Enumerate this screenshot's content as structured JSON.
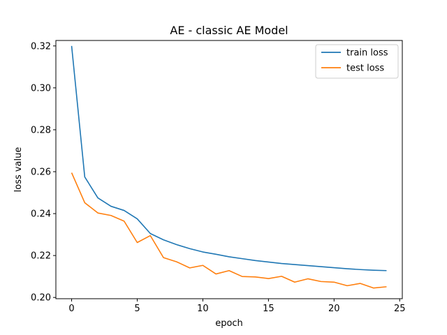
{
  "chart_data": {
    "type": "line",
    "title": "AE  - classic AE Model",
    "xlabel": "epoch",
    "ylabel": "loss value",
    "xlim": [
      -1.2,
      25.2
    ],
    "ylim": [
      0.1994,
      0.3226
    ],
    "xticks": [
      0,
      5,
      10,
      15,
      20,
      25
    ],
    "xtick_labels": [
      "0",
      "5",
      "10",
      "15",
      "20",
      "25"
    ],
    "yticks": [
      0.2,
      0.22,
      0.24,
      0.26,
      0.28,
      0.3,
      0.32
    ],
    "ytick_labels": [
      "0.20",
      "0.22",
      "0.24",
      "0.26",
      "0.28",
      "0.30",
      "0.32"
    ],
    "grid": false,
    "legend_position": "upper right",
    "x": [
      0,
      1,
      2,
      3,
      4,
      5,
      6,
      7,
      8,
      9,
      10,
      11,
      12,
      13,
      14,
      15,
      16,
      17,
      18,
      19,
      20,
      21,
      22,
      23,
      24
    ],
    "series": [
      {
        "name": "train loss",
        "color": "#1f77b4",
        "values": [
          0.32,
          0.2575,
          0.2475,
          0.2435,
          0.2415,
          0.2375,
          0.2305,
          0.2275,
          0.2252,
          0.2233,
          0.2217,
          0.2206,
          0.2194,
          0.2185,
          0.2176,
          0.2169,
          0.2162,
          0.2157,
          0.2152,
          0.2147,
          0.2142,
          0.2137,
          0.2133,
          0.213,
          0.2128
        ]
      },
      {
        "name": "test loss",
        "color": "#ff7f0e",
        "values": [
          0.2595,
          0.2452,
          0.2403,
          0.2391,
          0.2364,
          0.2262,
          0.2295,
          0.219,
          0.217,
          0.2141,
          0.2153,
          0.2112,
          0.2128,
          0.21,
          0.2098,
          0.209,
          0.2101,
          0.2073,
          0.2089,
          0.2076,
          0.2073,
          0.2056,
          0.2067,
          0.2045,
          0.2051
        ]
      }
    ]
  }
}
